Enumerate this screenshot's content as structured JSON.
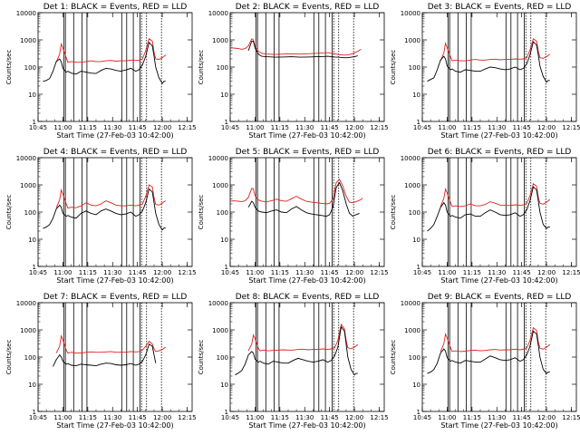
{
  "chart_data": {
    "type": "line",
    "y_scale": "log",
    "ylim": [
      1,
      10000
    ],
    "y_ticks": [
      1,
      10,
      100,
      1000,
      10000
    ],
    "y_tick_labels": [
      "1",
      "10",
      "100",
      "1000",
      "10000"
    ],
    "ylabel": "Counts/sec",
    "xlabel": "Start Time (27-Feb-03 10:42:00)",
    "x_units": "minutes since 10:42:00",
    "xlim": [
      3,
      96
    ],
    "x_ticks": [
      3,
      18,
      33,
      48,
      63,
      78,
      93
    ],
    "x_tick_labels": [
      "10:45",
      "11:00",
      "11:15",
      "11:30",
      "11:45",
      "12:00",
      "12:15"
    ],
    "series_colors": {
      "events": "#000000",
      "lld": "#e0201c"
    },
    "panels": [
      {
        "title": "Det 1: BLACK = Events, RED = LLD",
        "x": [
          6,
          8,
          10,
          12,
          14,
          16,
          17,
          18,
          20,
          21,
          23,
          26,
          29,
          32,
          35,
          38,
          41,
          44,
          47,
          50,
          53,
          56,
          59,
          62,
          64,
          66,
          68,
          70,
          72,
          73,
          74,
          76,
          78,
          79,
          80
        ],
        "events": [
          30,
          32,
          38,
          70,
          160,
          200,
          155,
          90,
          65,
          70,
          60,
          55,
          70,
          65,
          60,
          58,
          75,
          90,
          85,
          75,
          70,
          78,
          90,
          70,
          80,
          120,
          250,
          800,
          600,
          250,
          100,
          40,
          25,
          30,
          30
        ],
        "lld": [
          null,
          null,
          null,
          null,
          150,
          300,
          700,
          500,
          220,
          150,
          160,
          150,
          150,
          160,
          170,
          160,
          160,
          170,
          175,
          165,
          170,
          170,
          180,
          175,
          180,
          200,
          400,
          1100,
          900,
          350,
          200,
          190,
          220,
          250,
          280
        ]
      },
      {
        "title": "Det 2: BLACK = Events, RED = LLD",
        "x": [
          3,
          5,
          8,
          10,
          12,
          14,
          16,
          17,
          18,
          20,
          22,
          25,
          30,
          35,
          40,
          45,
          50,
          55,
          60,
          62,
          64,
          66,
          68,
          70,
          72,
          74,
          76,
          78,
          80,
          82
        ],
        "events": [
          null,
          null,
          null,
          null,
          null,
          400,
          900,
          900,
          500,
          300,
          250,
          240,
          230,
          235,
          240,
          230,
          235,
          240,
          245,
          250,
          240,
          235,
          230,
          225,
          220,
          220,
          230,
          240,
          260,
          null
        ],
        "lld": [
          520,
          500,
          480,
          450,
          480,
          600,
          1100,
          1000,
          600,
          380,
          320,
          300,
          290,
          300,
          310,
          300,
          310,
          320,
          330,
          340,
          320,
          310,
          290,
          280,
          275,
          280,
          300,
          330,
          380,
          450
        ]
      },
      {
        "title": "Det 3: BLACK = Events, RED = LLD",
        "x": [
          6,
          8,
          10,
          12,
          14,
          16,
          17,
          18,
          20,
          21,
          23,
          26,
          29,
          32,
          35,
          38,
          41,
          44,
          47,
          50,
          53,
          56,
          59,
          62,
          64,
          66,
          68,
          70,
          72,
          73,
          74,
          76,
          78,
          79,
          80
        ],
        "events": [
          30,
          35,
          40,
          80,
          180,
          250,
          200,
          110,
          80,
          85,
          70,
          65,
          80,
          75,
          70,
          70,
          85,
          100,
          95,
          85,
          80,
          85,
          100,
          80,
          90,
          130,
          280,
          850,
          650,
          280,
          110,
          45,
          28,
          32,
          32
        ],
        "lld": [
          null,
          null,
          null,
          null,
          170,
          330,
          750,
          520,
          240,
          170,
          180,
          170,
          170,
          180,
          190,
          180,
          180,
          190,
          195,
          185,
          190,
          190,
          200,
          195,
          200,
          220,
          420,
          1100,
          900,
          380,
          220,
          210,
          240,
          270,
          300
        ]
      },
      {
        "title": "Det 4: BLACK = Events, RED = LLD",
        "x": [
          6,
          8,
          10,
          12,
          14,
          16,
          17,
          18,
          20,
          21,
          23,
          26,
          29,
          32,
          35,
          38,
          41,
          44,
          47,
          50,
          53,
          56,
          59,
          62,
          64,
          66,
          68,
          70,
          72,
          73,
          74,
          76,
          78,
          79,
          80
        ],
        "events": [
          25,
          28,
          35,
          60,
          130,
          180,
          150,
          90,
          70,
          75,
          65,
          60,
          90,
          110,
          90,
          80,
          110,
          130,
          110,
          90,
          80,
          85,
          100,
          70,
          80,
          110,
          220,
          700,
          550,
          220,
          90,
          35,
          22,
          26,
          26
        ],
        "lld": [
          null,
          null,
          null,
          null,
          140,
          280,
          650,
          450,
          200,
          140,
          150,
          145,
          170,
          220,
          180,
          170,
          200,
          260,
          220,
          180,
          170,
          170,
          180,
          170,
          180,
          200,
          380,
          1000,
          850,
          330,
          190,
          180,
          210,
          240,
          260
        ]
      },
      {
        "title": "Det 5: BLACK = Events, RED = LLD",
        "x": [
          3,
          5,
          8,
          10,
          12,
          14,
          16,
          17,
          18,
          20,
          22,
          25,
          28,
          31,
          34,
          37,
          40,
          43,
          46,
          49,
          52,
          55,
          58,
          61,
          63,
          65,
          67,
          69,
          71,
          73,
          75,
          77,
          79,
          81,
          83
        ],
        "events": [
          null,
          null,
          null,
          null,
          null,
          150,
          250,
          220,
          150,
          110,
          100,
          95,
          110,
          120,
          100,
          95,
          130,
          160,
          120,
          95,
          85,
          80,
          75,
          70,
          80,
          150,
          800,
          1200,
          600,
          200,
          90,
          70,
          80,
          90,
          null
        ],
        "lld": [
          250,
          260,
          250,
          240,
          260,
          350,
          750,
          700,
          400,
          280,
          250,
          240,
          260,
          300,
          260,
          250,
          310,
          380,
          300,
          250,
          230,
          220,
          210,
          200,
          210,
          300,
          1200,
          1600,
          900,
          380,
          230,
          220,
          240,
          270,
          320
        ]
      },
      {
        "title": "Det 6: BLACK = Events, RED = LLD",
        "x": [
          6,
          8,
          10,
          12,
          14,
          16,
          17,
          18,
          20,
          21,
          23,
          26,
          29,
          32,
          35,
          38,
          41,
          44,
          47,
          50,
          53,
          56,
          59,
          62,
          64,
          66,
          68,
          70,
          72,
          73,
          74,
          76,
          78,
          79,
          80
        ],
        "events": [
          20,
          25,
          35,
          70,
          150,
          220,
          180,
          100,
          70,
          75,
          65,
          60,
          80,
          85,
          70,
          70,
          95,
          120,
          100,
          80,
          75,
          80,
          95,
          70,
          80,
          120,
          260,
          850,
          650,
          260,
          100,
          35,
          25,
          28,
          28
        ],
        "lld": [
          null,
          null,
          null,
          null,
          160,
          320,
          700,
          500,
          220,
          160,
          170,
          160,
          170,
          200,
          170,
          170,
          190,
          240,
          210,
          180,
          175,
          175,
          185,
          175,
          185,
          205,
          400,
          1100,
          900,
          350,
          210,
          195,
          230,
          260,
          290
        ]
      },
      {
        "title": "Det 7: BLACK = Events, RED = LLD",
        "x": [
          6,
          8,
          10,
          12,
          14,
          16,
          17,
          18,
          20,
          21,
          23,
          26,
          29,
          32,
          35,
          38,
          41,
          44,
          47,
          50,
          53,
          56,
          59,
          62,
          64,
          66,
          68,
          70,
          72,
          73,
          74,
          76,
          78,
          79,
          80
        ],
        "events": [
          null,
          null,
          null,
          45,
          80,
          120,
          100,
          70,
          55,
          58,
          50,
          48,
          55,
          52,
          50,
          48,
          55,
          60,
          58,
          52,
          50,
          52,
          58,
          50,
          55,
          70,
          120,
          300,
          250,
          120,
          60,
          null,
          null,
          null,
          null
        ],
        "lld": [
          null,
          null,
          null,
          null,
          140,
          250,
          600,
          420,
          180,
          140,
          150,
          140,
          140,
          150,
          155,
          150,
          150,
          155,
          160,
          150,
          150,
          150,
          160,
          155,
          160,
          180,
          250,
          380,
          300,
          200,
          160,
          170,
          190,
          210,
          230
        ]
      },
      {
        "title": "Det 8: BLACK = Events, RED = LLD",
        "x": [
          6,
          8,
          10,
          12,
          14,
          16,
          17,
          18,
          20,
          21,
          23,
          26,
          29,
          32,
          35,
          38,
          41,
          44,
          47,
          50,
          53,
          56,
          59,
          62,
          64,
          66,
          68,
          70,
          72,
          73,
          74,
          76,
          78,
          79,
          80
        ],
        "events": [
          22,
          26,
          32,
          55,
          120,
          160,
          140,
          85,
          65,
          70,
          60,
          55,
          70,
          65,
          60,
          60,
          75,
          90,
          80,
          70,
          65,
          70,
          80,
          65,
          75,
          110,
          230,
          1300,
          900,
          300,
          100,
          35,
          22,
          25,
          25
        ],
        "lld": [
          null,
          null,
          null,
          null,
          170,
          300,
          650,
          480,
          210,
          170,
          180,
          170,
          175,
          180,
          185,
          180,
          180,
          190,
          195,
          185,
          190,
          190,
          200,
          190,
          200,
          220,
          400,
          1600,
          1100,
          400,
          220,
          200,
          230,
          260,
          290
        ]
      },
      {
        "title": "Det 9: BLACK = Events, RED = LLD",
        "x": [
          6,
          8,
          10,
          12,
          14,
          16,
          17,
          18,
          20,
          21,
          23,
          26,
          29,
          32,
          35,
          38,
          41,
          44,
          47,
          50,
          53,
          56,
          59,
          62,
          64,
          66,
          68,
          70,
          72,
          73,
          74,
          76,
          78,
          79,
          80
        ],
        "events": [
          25,
          28,
          35,
          60,
          140,
          200,
          165,
          95,
          70,
          75,
          65,
          60,
          75,
          70,
          65,
          65,
          85,
          110,
          95,
          80,
          75,
          80,
          95,
          70,
          80,
          120,
          250,
          900,
          700,
          270,
          100,
          35,
          25,
          28,
          28
        ],
        "lld": [
          null,
          null,
          null,
          null,
          160,
          310,
          700,
          500,
          220,
          160,
          170,
          160,
          165,
          175,
          180,
          170,
          175,
          185,
          190,
          180,
          185,
          185,
          195,
          185,
          195,
          215,
          400,
          1200,
          950,
          360,
          210,
          195,
          230,
          260,
          290
        ]
      }
    ],
    "vertical_markers": [
      18.5,
      19.5,
      24.5,
      29.5,
      32.5,
      53.5,
      56.5,
      60.5,
      64.5
    ],
    "dotted_markers": [
      65.5,
      68.5,
      77.5
    ]
  }
}
